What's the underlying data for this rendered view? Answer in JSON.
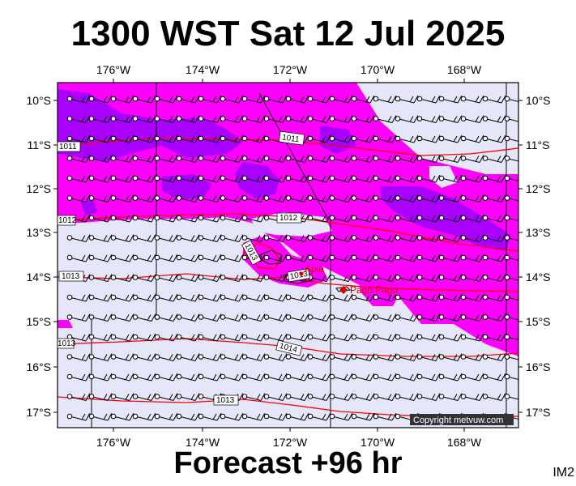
{
  "title": "1300 WST Sat 12 Jul 2025",
  "footer": "Forecast +96 hr",
  "corner_label": "IM2",
  "copyright": "Copyright metvuw.com",
  "colors": {
    "background_fill": "#e6e6fa",
    "rain_light": "#ff00ff",
    "rain_heavy": "#aa00ff",
    "isobar": "#ff0000",
    "barb": "#000000"
  },
  "map": {
    "lon_ticks": [
      "176°W",
      "174°W",
      "172°W",
      "170°W",
      "168°W"
    ],
    "lat_ticks": [
      "10°S",
      "11°S",
      "12°S",
      "13°S",
      "14°S",
      "15°S",
      "16°S",
      "17°S"
    ],
    "isobar_labels": [
      "1011",
      "1011",
      "1012",
      "1012",
      "1013",
      "1013",
      "1013",
      "1014",
      "1013",
      "1013"
    ],
    "places": [
      "Apia",
      "Pago Pago"
    ]
  },
  "wind_barbs": {
    "direction": "easterly",
    "grid_rows": 17,
    "grid_cols": 21
  }
}
